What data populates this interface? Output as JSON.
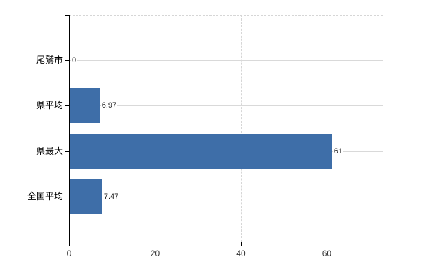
{
  "chart_data": {
    "type": "bar",
    "orientation": "horizontal",
    "categories": [
      "尾鷲市",
      "県平均",
      "県最大",
      "全国平均"
    ],
    "values": [
      0,
      6.97,
      61,
      7.47
    ],
    "value_labels": [
      "0",
      "6.97",
      "61",
      "7.47"
    ],
    "x_ticks": [
      0,
      20,
      40,
      60
    ],
    "x_tick_labels": [
      "0",
      "20",
      "40",
      "60"
    ],
    "xlim": [
      0,
      73
    ],
    "bar_color": "#3e6ea8",
    "gridline_color": "#d9d9d9",
    "axis_color": "#000000",
    "grid": "on",
    "legend": "none",
    "title": "",
    "xlabel": "",
    "ylabel": ""
  }
}
